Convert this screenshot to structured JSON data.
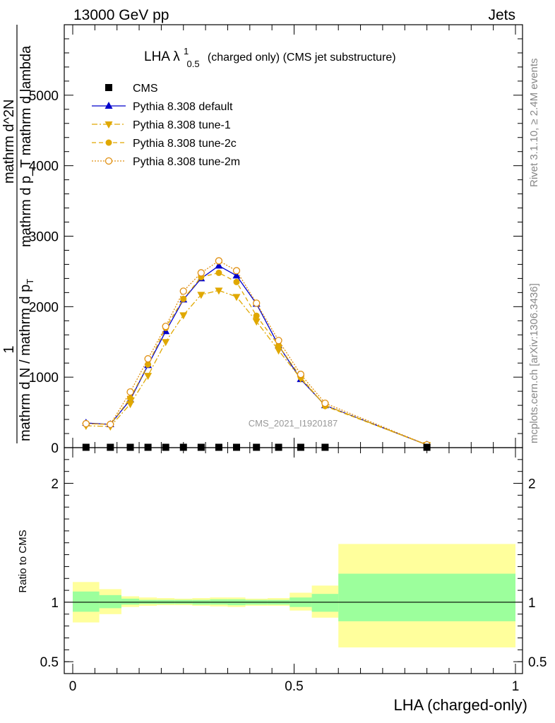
{
  "header": {
    "left": "13000 GeV pp",
    "right": "Jets"
  },
  "side_labels": {
    "rivet": "Rivet 3.1.10, ≥ 2.4M events",
    "mcplots": "mcplots.cern.ch [arXiv:1306.3436]"
  },
  "plot_title": {
    "main": "LHA λ",
    "sup": "1",
    "sub": "0.5",
    "rest": "(charged only) (CMS jet substructure)"
  },
  "watermark": "CMS_2021_I1920187",
  "ylabel_top": {
    "prefix": "1",
    "line1": "mathrm d N / mathrm d p",
    "line1_sub": "T",
    "line2": "mathrm d^2N",
    "line3": "mathrm d p_T mathrm d lambda"
  },
  "ratio_ylabel": "Ratio to CMS",
  "xlabel": "LHA (charged-only)",
  "colors": {
    "cms": "#000000",
    "default": "#0000cc",
    "tune": "#e0a800",
    "tune2m": "#e08f10",
    "band_inner": "#9cff9c",
    "band_outer": "#ffff9c"
  },
  "chart_data": {
    "type": "line",
    "xlim": [
      0,
      1
    ],
    "ylim": [
      0,
      6000
    ],
    "ratio_ylim": [
      0.4,
      2.3
    ],
    "x_ticks": [
      "0",
      "0.5",
      "1"
    ],
    "x_tick_values": [
      0,
      0.5,
      1
    ],
    "y_ticks": [
      "0",
      "1000",
      "2000",
      "3000",
      "4000",
      "5000"
    ],
    "y_tick_values": [
      0,
      1000,
      2000,
      3000,
      4000,
      5000
    ],
    "ratio_ticks": [
      "0.5",
      "1",
      "2"
    ],
    "ratio_tick_values": [
      0.5,
      1,
      2
    ],
    "bin_edges": [
      0,
      0.06,
      0.11,
      0.15,
      0.19,
      0.23,
      0.27,
      0.31,
      0.35,
      0.39,
      0.44,
      0.49,
      0.54,
      0.6,
      1.0
    ],
    "x": [
      0.03,
      0.085,
      0.13,
      0.17,
      0.21,
      0.25,
      0.29,
      0.33,
      0.37,
      0.415,
      0.465,
      0.515,
      0.57,
      0.8
    ],
    "legend_position": "top-left",
    "series": [
      {
        "name": "CMS",
        "marker": "square",
        "values": [
          5,
          5,
          5,
          5,
          5,
          5,
          5,
          5,
          5,
          5,
          5,
          5,
          5,
          5
        ]
      },
      {
        "name": "Pythia 8.308 default",
        "marker": "triangle-up",
        "dash": "",
        "values": [
          350,
          330,
          680,
          1170,
          1650,
          2100,
          2400,
          2580,
          2440,
          2040,
          1450,
          970,
          600,
          40
        ]
      },
      {
        "name": "Pythia 8.308 tune-1",
        "marker": "triangle-down",
        "dash": "8,3,2,3",
        "values": [
          310,
          300,
          620,
          1020,
          1500,
          1880,
          2170,
          2230,
          2140,
          1790,
          1380,
          980,
          600,
          40
        ]
      },
      {
        "name": "Pythia 8.308 tune-2c",
        "marker": "circle",
        "dash": "6,4",
        "values": [
          340,
          330,
          700,
          1180,
          1700,
          2110,
          2420,
          2480,
          2350,
          1870,
          1450,
          1000,
          590,
          40
        ]
      },
      {
        "name": "Pythia 8.308 tune-2m",
        "marker": "circle-open",
        "dash": "2,2",
        "values": [
          340,
          330,
          790,
          1260,
          1720,
          2220,
          2480,
          2650,
          2510,
          2050,
          1520,
          1040,
          630,
          40
        ]
      }
    ],
    "ratio_band_inner": [
      [
        0.92,
        1.09
      ],
      [
        0.95,
        1.06
      ],
      [
        0.98,
        1.03
      ],
      [
        0.985,
        1.02
      ],
      [
        0.985,
        1.02
      ],
      [
        0.985,
        1.02
      ],
      [
        0.98,
        1.02
      ],
      [
        0.98,
        1.025
      ],
      [
        0.975,
        1.025
      ],
      [
        0.98,
        1.02
      ],
      [
        0.98,
        1.02
      ],
      [
        0.96,
        1.04
      ],
      [
        0.92,
        1.07
      ],
      [
        0.84,
        1.24
      ]
    ],
    "ratio_band_outer": [
      [
        0.83,
        1.17
      ],
      [
        0.9,
        1.11
      ],
      [
        0.96,
        1.05
      ],
      [
        0.97,
        1.04
      ],
      [
        0.975,
        1.035
      ],
      [
        0.975,
        1.03
      ],
      [
        0.97,
        1.035
      ],
      [
        0.965,
        1.04
      ],
      [
        0.96,
        1.04
      ],
      [
        0.97,
        1.03
      ],
      [
        0.97,
        1.035
      ],
      [
        0.93,
        1.08
      ],
      [
        0.87,
        1.14
      ],
      [
        0.62,
        1.49
      ]
    ]
  }
}
